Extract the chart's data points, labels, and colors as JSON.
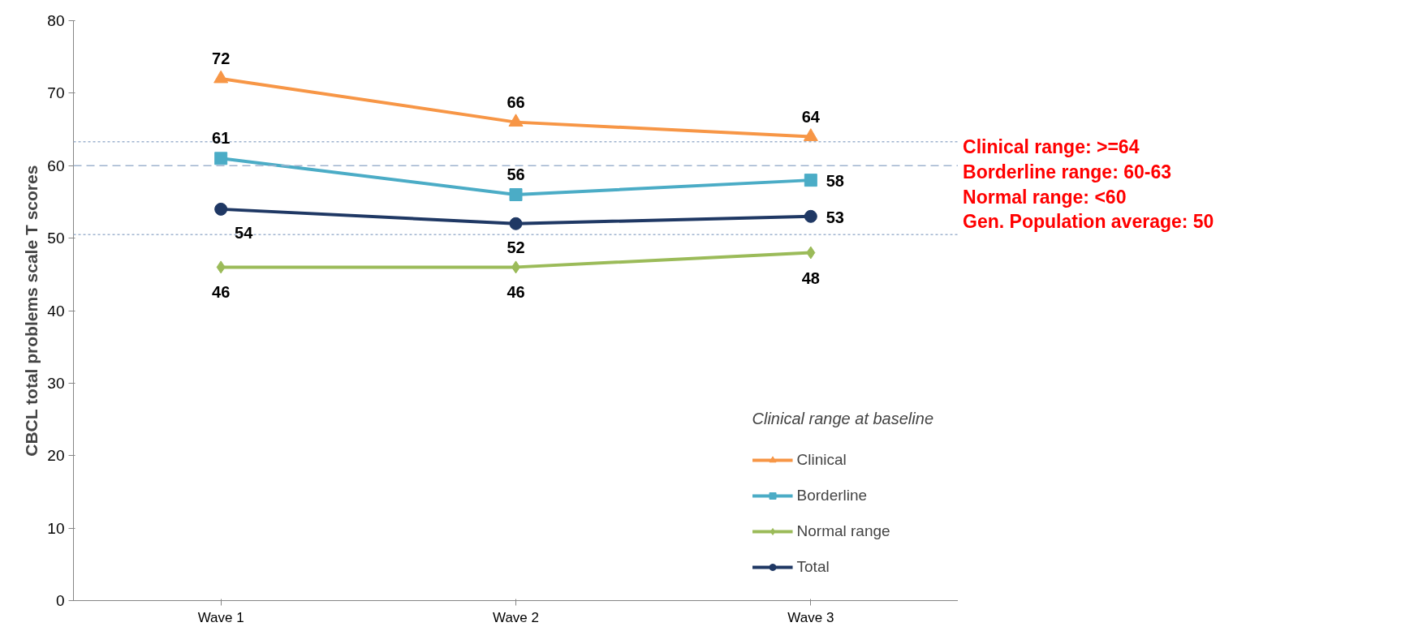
{
  "chart_data": {
    "type": "line",
    "ylabel": "CBCL total problems scale T scores",
    "categories": [
      "Wave 1",
      "Wave 2",
      "Wave 3"
    ],
    "series": [
      {
        "name": "Clinical",
        "color": "#f79646",
        "marker": "triangle",
        "values": [
          72,
          66,
          64
        ]
      },
      {
        "name": "Borderline",
        "color": "#4bacc6",
        "marker": "square",
        "values": [
          61,
          56,
          58
        ]
      },
      {
        "name": "Normal range",
        "color": "#9bbb59",
        "marker": "diamond",
        "values": [
          46,
          46,
          48
        ]
      },
      {
        "name": "Total",
        "color": "#1f3864",
        "marker": "circle",
        "values": [
          54,
          52,
          53
        ]
      }
    ],
    "ylim": [
      0,
      80
    ],
    "yticks": [
      0,
      10,
      20,
      30,
      40,
      50,
      60,
      70,
      80
    ],
    "grid": false,
    "legend": "bottom right",
    "legend_title": "Clinical range at baseline",
    "data_labels": true,
    "line_style": "solid",
    "ref_lines": [
      {
        "axis": "y",
        "value": 63.3,
        "color": "#9fb3cf",
        "line_style": "dotted"
      },
      {
        "axis": "y",
        "value": 60,
        "color": "#9fb3cf",
        "line_style": "dashed"
      },
      {
        "axis": "y",
        "value": 50.5,
        "color": "#9fb3cf",
        "line_style": "dotted"
      }
    ],
    "annotations": [
      "Clinical range: >=64",
      "Borderline range: 60-63",
      "Normal range: <60",
      "Gen. Population average: 50"
    ]
  }
}
